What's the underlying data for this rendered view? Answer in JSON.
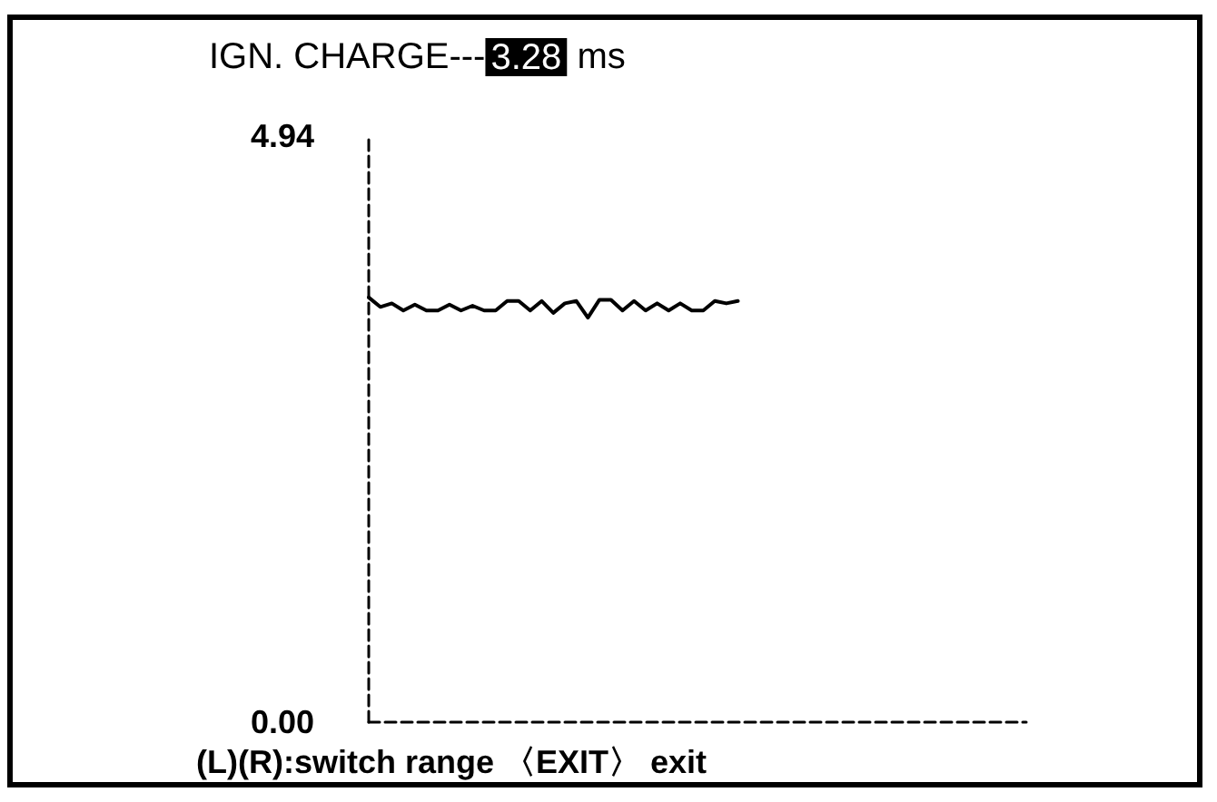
{
  "chart_data": {
    "type": "line",
    "title": "IGN. CHARGE---3.28 ms",
    "categories": [
      null,
      null,
      null,
      null,
      null,
      null,
      null,
      null,
      null,
      null,
      null,
      null,
      null,
      null,
      null,
      null,
      null,
      null,
      null,
      null,
      null,
      null,
      null,
      null,
      null,
      null,
      null,
      null,
      null,
      null,
      null,
      null,
      null,
      null,
      null,
      null,
      null,
      null,
      null,
      null,
      null,
      null,
      null,
      null,
      null,
      null,
      null,
      null,
      null,
      null,
      null,
      null,
      null,
      null,
      null,
      null,
      null,
      null
    ],
    "series": [
      {
        "color": "#000000",
        "values": [
          3.58,
          3.5,
          3.53,
          3.47,
          3.52,
          3.47,
          3.47,
          3.52,
          3.47,
          3.51,
          3.47,
          3.47,
          3.55,
          3.55,
          3.47,
          3.55,
          3.45,
          3.53,
          3.55,
          3.41,
          3.56,
          3.56,
          3.47,
          3.55,
          3.47,
          3.53,
          3.47,
          3.53,
          3.47,
          3.47,
          3.55,
          3.53,
          3.55,
          null,
          null,
          null,
          null,
          null,
          null,
          null,
          null,
          null,
          null,
          null,
          null,
          null,
          null,
          null,
          null,
          null,
          null,
          null,
          null,
          null,
          null,
          null,
          null,
          null
        ]
      }
    ],
    "ylim": [
      0,
      4.94
    ],
    "yticks": [
      {
        "value": 0,
        "label": "0.00"
      },
      4.94
    ],
    "grid": false,
    "marker": "none",
    "line_style": "solid",
    "annotations": [
      "(L)(R):switch range 〈EXIT〉 exit"
    ]
  }
}
